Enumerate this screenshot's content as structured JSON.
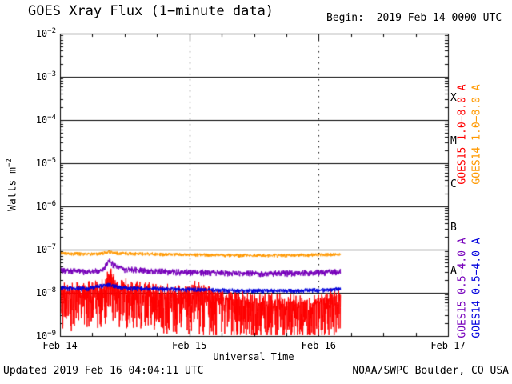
{
  "header": {
    "title": "GOES Xray Flux (1−minute data)",
    "begin_label": "Begin:  2019 Feb 14 0000 UTC"
  },
  "footer": {
    "updated": "Updated 2019 Feb 16 04:04:11 UTC",
    "source": "NOAA/SWPC Boulder, CO USA"
  },
  "chart_labels": {
    "ylabel_base": "Watts m",
    "ylabel_exp": "−2"
  },
  "chart_data": {
    "type": "line",
    "title": "GOES Xray Flux (1-minute data)",
    "xlabel": "Universal Time",
    "ylabel": "Watts m^-2",
    "x_axis": {
      "tick_labels": [
        "Feb 14",
        "Feb 15",
        "Feb 16",
        "Feb 17"
      ],
      "range_days": [
        0,
        3
      ],
      "minor_tick_hours": 6,
      "dotted_gridline_days": [
        1,
        2
      ]
    },
    "y_axis": {
      "scale": "log",
      "exponent_ticks": [
        -2,
        -3,
        -4,
        -5,
        -6,
        -7,
        -8,
        -9
      ],
      "range": [
        1e-09,
        0.01
      ],
      "solid_gridline_exponents": [
        -3,
        -4,
        -5,
        -6,
        -7,
        -8
      ]
    },
    "flare_class_labels": [
      {
        "label": "X",
        "between_exponents": [
          -4,
          -3
        ]
      },
      {
        "label": "M",
        "between_exponents": [
          -5,
          -4
        ]
      },
      {
        "label": "C",
        "between_exponents": [
          -6,
          -5
        ]
      },
      {
        "label": "B",
        "between_exponents": [
          -7,
          -6
        ]
      },
      {
        "label": "A",
        "between_exponents": [
          -8,
          -7
        ]
      }
    ],
    "legend": [
      {
        "label": "GOES15 1.0−8.0 A",
        "color": "#ff0000",
        "column": "inner",
        "group": "long"
      },
      {
        "label": "GOES14 1.0−8.0 A",
        "color": "#ff9900",
        "column": "outer",
        "group": "long"
      },
      {
        "label": "GOES15 0.5−4.0 A",
        "color": "#7700bb",
        "column": "inner",
        "group": "short"
      },
      {
        "label": "GOES14 0.5−4.0 A",
        "color": "#0000dd",
        "column": "outer",
        "group": "short"
      }
    ],
    "series": [
      {
        "name": "GOES15 1.0-8.0 A",
        "color": "#ff0000",
        "noise_up_decades": 0.25,
        "noise_down_decades": 1.0,
        "points": [
          [
            0,
            1.1e-08
          ],
          [
            0.1,
            1.05e-08
          ],
          [
            0.2,
            1.1e-08
          ],
          [
            0.3,
            1.15e-08
          ],
          [
            0.35,
            1.3e-08
          ],
          [
            0.375,
            3e-08
          ],
          [
            0.4,
            1.9e-08
          ],
          [
            0.45,
            1.35e-08
          ],
          [
            0.55,
            1.15e-08
          ],
          [
            0.7,
            1e-08
          ],
          [
            0.85,
            9e-09
          ],
          [
            1.0,
            9.5e-09
          ],
          [
            1.05,
            1.15e-08
          ],
          [
            1.15,
            8e-09
          ],
          [
            1.3,
            7e-09
          ],
          [
            1.5,
            6e-09
          ],
          [
            1.7,
            5.5e-09
          ],
          [
            1.85,
            5.2e-09
          ],
          [
            2.0,
            6e-09
          ],
          [
            2.1,
            7.5e-09
          ],
          [
            2.17,
            9.5e-09
          ]
        ]
      },
      {
        "name": "GOES15 0.5-4.0 A",
        "color": "#7700bb",
        "noise_up_decades": 0.07,
        "noise_down_decades": 0.09,
        "points": [
          [
            0,
            3.3e-08
          ],
          [
            0.2,
            3.1e-08
          ],
          [
            0.33,
            3.2e-08
          ],
          [
            0.375,
            5.6e-08
          ],
          [
            0.42,
            4.3e-08
          ],
          [
            0.5,
            3.5e-08
          ],
          [
            0.8,
            3.1e-08
          ],
          [
            1.0,
            3e-08
          ],
          [
            1.3,
            2.9e-08
          ],
          [
            1.6,
            2.8e-08
          ],
          [
            1.9,
            2.9e-08
          ],
          [
            2.17,
            3.1e-08
          ]
        ]
      },
      {
        "name": "GOES14 1.0-8.0 A",
        "color": "#ff9900",
        "noise_up_decades": 0.04,
        "noise_down_decades": 0.05,
        "points": [
          [
            0,
            8.2e-08
          ],
          [
            0.3,
            7.9e-08
          ],
          [
            0.375,
            8.8e-08
          ],
          [
            0.45,
            8.2e-08
          ],
          [
            0.8,
            7.8e-08
          ],
          [
            1.2,
            7.5e-08
          ],
          [
            1.6,
            7.3e-08
          ],
          [
            2.0,
            7.6e-08
          ],
          [
            2.17,
            7.8e-08
          ]
        ]
      },
      {
        "name": "GOES14 0.5-4.0 A",
        "color": "#0000dd",
        "noise_up_decades": 0.05,
        "noise_down_decades": 0.07,
        "points": [
          [
            0,
            1.3e-08
          ],
          [
            0.2,
            1.25e-08
          ],
          [
            0.375,
            1.55e-08
          ],
          [
            0.5,
            1.3e-08
          ],
          [
            1.0,
            1.2e-08
          ],
          [
            1.5,
            1.12e-08
          ],
          [
            2.0,
            1.15e-08
          ],
          [
            2.17,
            1.25e-08
          ]
        ]
      }
    ]
  }
}
